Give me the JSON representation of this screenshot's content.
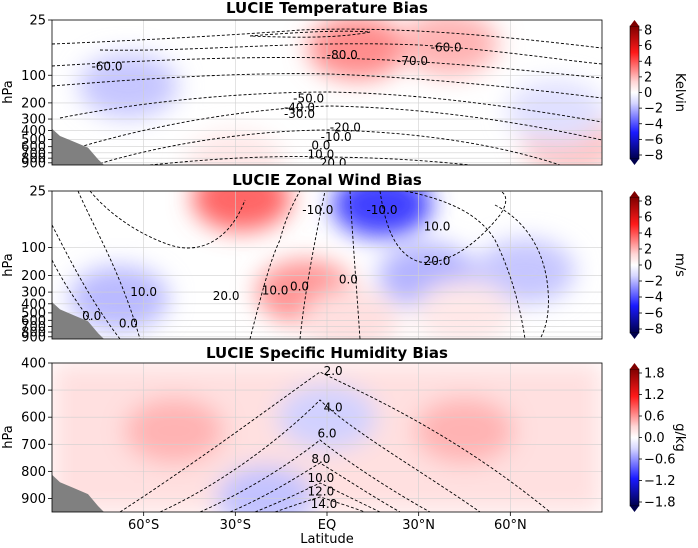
{
  "figure": {
    "xlabel": "Latitude",
    "x_ticks": [
      {
        "lat": -60,
        "label": "60°S"
      },
      {
        "lat": -30,
        "label": "30°S"
      },
      {
        "lat": 0,
        "label": "EQ"
      },
      {
        "lat": 30,
        "label": "30°N"
      },
      {
        "lat": 60,
        "label": "60°N"
      }
    ],
    "xlim": [
      -90,
      90
    ],
    "colormap": "seismic (blue-white-red)",
    "terrain_color": "#808080"
  },
  "chart_data": [
    {
      "type": "heatmap",
      "title": "LUCIE Temperature Bias",
      "ylabel": "hPa",
      "y_ticks": [
        25,
        100,
        200,
        300,
        400,
        500,
        600,
        700,
        800,
        900
      ],
      "ylim": [
        950,
        25
      ],
      "colorbar": {
        "label": "Kelvin",
        "ticks": [
          "8",
          "6",
          "4",
          "2",
          "0",
          "−2",
          "−4",
          "−6",
          "−8"
        ],
        "range": [
          -8,
          8
        ]
      },
      "contour_labels": [
        {
          "text": "-60.0",
          "lat": -72,
          "p": 80
        },
        {
          "text": "-80.0",
          "lat": 5,
          "p": 60
        },
        {
          "text": "-70.0",
          "lat": 28,
          "p": 70
        },
        {
          "text": "-60.0",
          "lat": 39,
          "p": 50
        },
        {
          "text": "-50.0",
          "lat": -6,
          "p": 180
        },
        {
          "text": "-40.0",
          "lat": -9,
          "p": 225
        },
        {
          "text": "-30.0",
          "lat": -9,
          "p": 265
        },
        {
          "text": "-20.0",
          "lat": 6,
          "p": 370
        },
        {
          "text": "-10.0",
          "lat": 3,
          "p": 470
        },
        {
          "text": "0.0",
          "lat": -2,
          "p": 580
        },
        {
          "text": "10.0",
          "lat": -2,
          "p": 730
        },
        {
          "text": "20.0",
          "lat": 2,
          "p": 900
        }
      ],
      "bias_pattern": [
        {
          "lat": -65,
          "p": 130,
          "value": -1.5
        },
        {
          "lat": -30,
          "p": 900,
          "value": 0.6
        },
        {
          "lat": 10,
          "p": 50,
          "value": 3.0
        },
        {
          "lat": 40,
          "p": 45,
          "value": 2.0
        },
        {
          "lat": 80,
          "p": 560,
          "value": 1.5
        },
        {
          "lat": 75,
          "p": 250,
          "value": -0.8
        }
      ]
    },
    {
      "type": "heatmap",
      "title": "LUCIE Zonal Wind Bias",
      "ylabel": "hPa",
      "y_ticks": [
        25,
        100,
        200,
        300,
        400,
        500,
        600,
        700,
        800,
        900
      ],
      "ylim": [
        950,
        25
      ],
      "colorbar": {
        "label": "m/s",
        "ticks": [
          "8",
          "6",
          "4",
          "2",
          "0",
          "−2",
          "−4",
          "−6",
          "−8"
        ],
        "range": [
          -8,
          8
        ]
      },
      "contour_labels": [
        {
          "text": "-10.0",
          "lat": -3,
          "p": 40
        },
        {
          "text": "-10.0",
          "lat": 18,
          "p": 40
        },
        {
          "text": "10.0",
          "lat": 36,
          "p": 60
        },
        {
          "text": "20.0",
          "lat": 36,
          "p": 140
        },
        {
          "text": "10.0",
          "lat": -60,
          "p": 300
        },
        {
          "text": "20.0",
          "lat": -33,
          "p": 330
        },
        {
          "text": "10.0",
          "lat": -17,
          "p": 290
        },
        {
          "text": "0.0",
          "lat": -9,
          "p": 260
        },
        {
          "text": "0.0",
          "lat": 7,
          "p": 220
        },
        {
          "text": "0.0",
          "lat": -77,
          "p": 540
        },
        {
          "text": "0.0",
          "lat": -65,
          "p": 650
        }
      ],
      "bias_pattern": [
        {
          "lat": -28,
          "p": 30,
          "value": 4.0
        },
        {
          "lat": -7,
          "p": 300,
          "value": 2.8
        },
        {
          "lat": 18,
          "p": 35,
          "value": -5.0
        },
        {
          "lat": -68,
          "p": 350,
          "value": -1.8
        },
        {
          "lat": 33,
          "p": 200,
          "value": -2.0
        },
        {
          "lat": 65,
          "p": 180,
          "value": -1.5
        },
        {
          "lat": 8,
          "p": 600,
          "value": 0.8
        },
        {
          "lat": 45,
          "p": 500,
          "value": 0.6
        }
      ]
    },
    {
      "type": "heatmap",
      "title": "LUCIE Specific Humidity Bias",
      "ylabel": "hPa",
      "y_ticks": [
        400,
        500,
        600,
        700,
        800,
        900
      ],
      "ylim": [
        950,
        400
      ],
      "colorbar": {
        "label": "g/kg",
        "ticks": [
          "1.8",
          "1.2",
          "0.6",
          "0.0",
          "−0.6",
          "−1.2",
          "−1.8"
        ],
        "range": [
          -2,
          2
        ]
      },
      "contour_labels": [
        {
          "text": "2.0",
          "lat": 2,
          "p": 430
        },
        {
          "text": "4.0",
          "lat": 2,
          "p": 565
        },
        {
          "text": "6.0",
          "lat": 0,
          "p": 660
        },
        {
          "text": "8.0",
          "lat": -2,
          "p": 755
        },
        {
          "text": "10.0",
          "lat": -2,
          "p": 825
        },
        {
          "text": "12.0",
          "lat": -2,
          "p": 875
        },
        {
          "text": "14.0",
          "lat": -1,
          "p": 920
        }
      ],
      "bias_pattern": [
        {
          "lat": -50,
          "p": 650,
          "value": 0.5
        },
        {
          "lat": 45,
          "p": 650,
          "value": 0.5
        },
        {
          "lat": 0,
          "p": 600,
          "value": -0.3
        },
        {
          "lat": -20,
          "p": 900,
          "value": -0.4
        }
      ]
    }
  ]
}
